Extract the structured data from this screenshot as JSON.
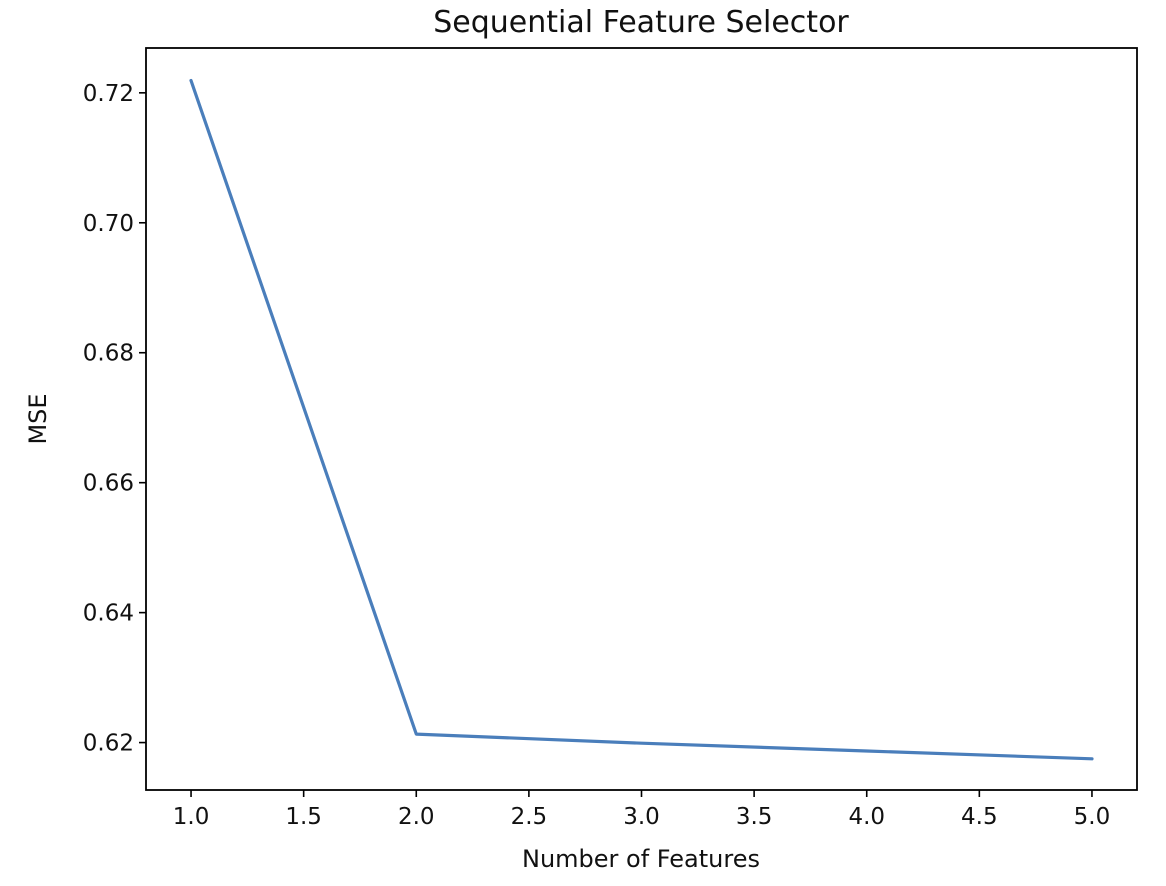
{
  "chart_data": {
    "type": "line",
    "title": "Sequential Feature Selector",
    "xlabel": "Number of Features",
    "ylabel": "MSE",
    "xlim": [
      0.8,
      5.2
    ],
    "ylim": [
      0.6127,
      0.7269
    ],
    "xticks": [
      1.0,
      1.5,
      2.0,
      2.5,
      3.0,
      3.5,
      4.0,
      4.5,
      5.0
    ],
    "xtick_labels": [
      "1.0",
      "1.5",
      "2.0",
      "2.5",
      "3.0",
      "3.5",
      "4.0",
      "4.5",
      "5.0"
    ],
    "yticks": [
      0.62,
      0.64,
      0.66,
      0.68,
      0.7,
      0.72
    ],
    "ytick_labels": [
      "0.62",
      "0.64",
      "0.66",
      "0.68",
      "0.70",
      "0.72"
    ],
    "grid": false,
    "legend": "none",
    "series": [
      {
        "color": "#4a7ebb",
        "x": [
          1,
          2,
          3,
          4,
          5
        ],
        "y": [
          0.7219,
          0.6213,
          0.6199,
          0.6187,
          0.6175
        ]
      }
    ]
  }
}
